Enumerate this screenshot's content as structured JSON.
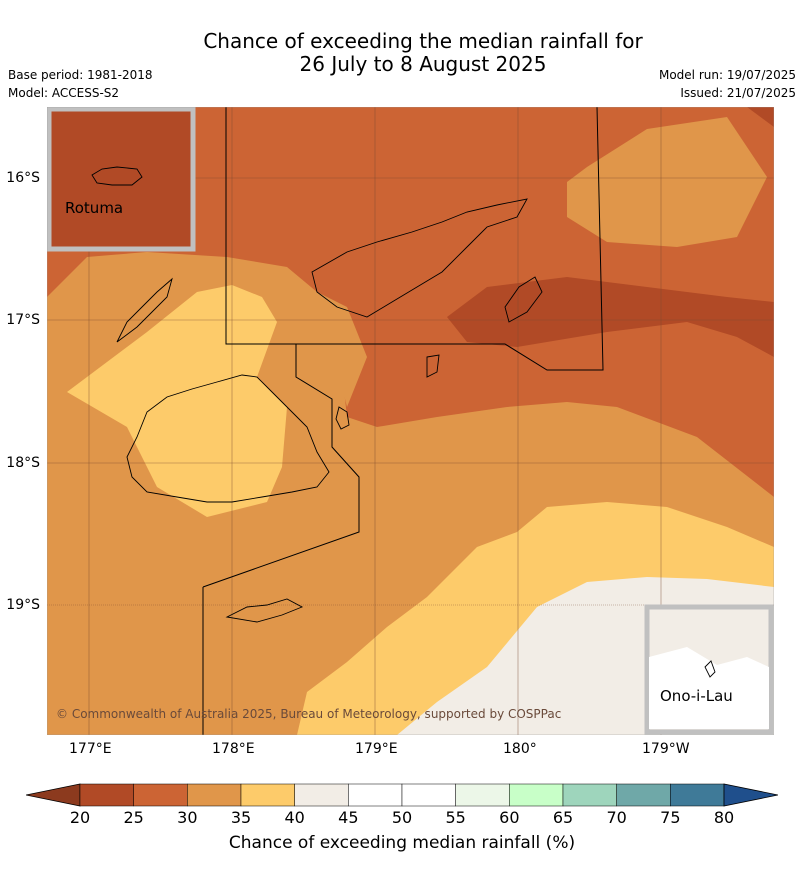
{
  "title_line1": "Chance of exceeding the median rainfall for",
  "title_line2": "26 July to 8 August 2025",
  "base_period": "Base period: 1981-2018",
  "model": "Model: ACCESS-S2",
  "model_run": "Model run: 19/07/2025",
  "issued": "Issued: 21/07/2025",
  "copyright": "© Commonwealth of Australia 2025, Bureau of Meteorology, supported by COSPPac",
  "lon_labels": [
    "177°E",
    "178°E",
    "179°E",
    "180°",
    "179°W"
  ],
  "lat_labels": [
    "16°S",
    "17°S",
    "18°S",
    "19°S"
  ],
  "inset_rotuma": "Rotuma",
  "inset_onoilau": "Ono-i-Lau",
  "colorbar": {
    "title": "Chance of exceeding median rainfall (%)",
    "ticks": [
      "20",
      "25",
      "30",
      "35",
      "40",
      "45",
      "50",
      "55",
      "60",
      "65",
      "70",
      "75",
      "80"
    ],
    "colors": [
      "#8c3a1e",
      "#b14a26",
      "#cc6434",
      "#e0964a",
      "#fdcb6a",
      "#f2ede6",
      "#ffffff",
      "#ffffff",
      "#ecf7e8",
      "#c8ffc8",
      "#9ed5bc",
      "#6fa8a8",
      "#3f7a98",
      "#1f4f8c"
    ]
  },
  "palette": {
    "p20_25": "#b14a26",
    "p25_30": "#cc6434",
    "p30_35": "#e0964a",
    "p35_40": "#fdcb6a",
    "p40_45": "#f2ede6",
    "white": "#ffffff"
  }
}
